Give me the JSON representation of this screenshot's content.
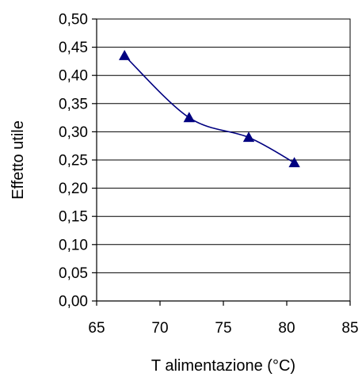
{
  "chart_data": {
    "type": "scatter",
    "title": "",
    "xlabel": "T alimentazione (°C)",
    "ylabel": "Effetto utile",
    "xlim": [
      65,
      85
    ],
    "ylim": [
      0,
      0.5
    ],
    "x_ticks": [
      65,
      70,
      75,
      80,
      85
    ],
    "x_tick_labels": [
      "65",
      "70",
      "75",
      "80",
      "85"
    ],
    "y_ticks": [
      0,
      0.05,
      0.1,
      0.15,
      0.2,
      0.25,
      0.3,
      0.35,
      0.4,
      0.45,
      0.5
    ],
    "y_tick_labels": [
      "0,00",
      "0,05",
      "0,10",
      "0,15",
      "0,20",
      "0,25",
      "0,30",
      "0,35",
      "0,40",
      "0,45",
      "0,50"
    ],
    "grid": "horizontal",
    "line_style": "smooth",
    "marker": "triangle",
    "series": [
      {
        "color": "#000080",
        "points": [
          {
            "x": 67.2,
            "y": 0.435
          },
          {
            "x": 72.3,
            "y": 0.325
          },
          {
            "x": 77.0,
            "y": 0.29
          },
          {
            "x": 80.6,
            "y": 0.245
          }
        ]
      }
    ]
  }
}
